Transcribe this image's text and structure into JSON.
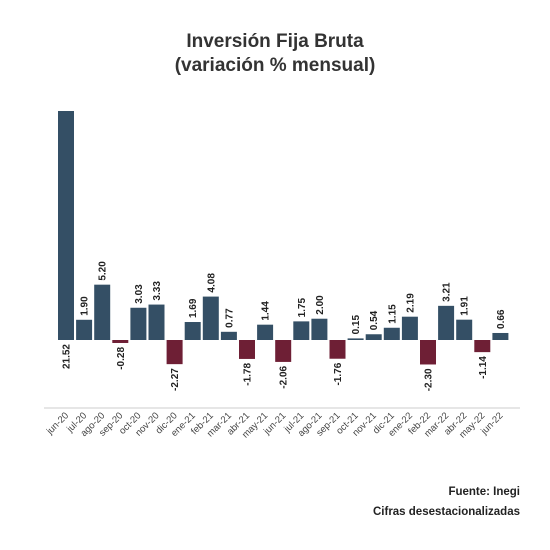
{
  "chart_data": {
    "type": "bar",
    "title_line1": "Inversión Fija Bruta",
    "title_line2": "(variación % mensual)",
    "xlabel": "",
    "ylabel": "",
    "ylim": [
      -4.7,
      21.52
    ],
    "grid": false,
    "legend": "none",
    "categories": [
      "jun-20",
      "jul-20",
      "ago-20",
      "sep-20",
      "oct-20",
      "nov-20",
      "dic-20",
      "ene-21",
      "feb-21",
      "mar-21",
      "abr-21",
      "may-21",
      "jun-21",
      "jul-21",
      "ago-21",
      "sep-21",
      "oct-21",
      "nov-21",
      "dic-21",
      "ene-22",
      "feb-22",
      "mar-22",
      "abr-22",
      "may-22",
      "jun-22"
    ],
    "values": [
      21.52,
      1.9,
      5.2,
      -0.28,
      3.03,
      3.33,
      -2.27,
      1.69,
      4.08,
      0.77,
      -1.78,
      1.44,
      -2.06,
      1.75,
      2.0,
      -1.76,
      0.15,
      0.54,
      1.15,
      2.19,
      -2.3,
      3.21,
      1.91,
      -1.14,
      0.66
    ],
    "value_labels": [
      "21.52",
      "1.90",
      "5.20",
      "-0.28",
      "3.03",
      "3.33",
      "-2.27",
      "1.69",
      "4.08",
      "0.77",
      "-1.78",
      "1.44",
      "-2.06",
      "1.75",
      "2.00",
      "-1.76",
      "0.15",
      "0.54",
      "1.15",
      "2.19",
      "-2.30",
      "3.21",
      "1.91",
      "-1.14",
      "0.66"
    ],
    "colors": {
      "positive": "#344f65",
      "negative": "#6e1f35",
      "axis": "#cccccc",
      "label": "#222222",
      "tick": "#444444"
    }
  },
  "footer": {
    "source": "Fuente: Inegi",
    "note": "Cifras desestacionalizadas"
  }
}
